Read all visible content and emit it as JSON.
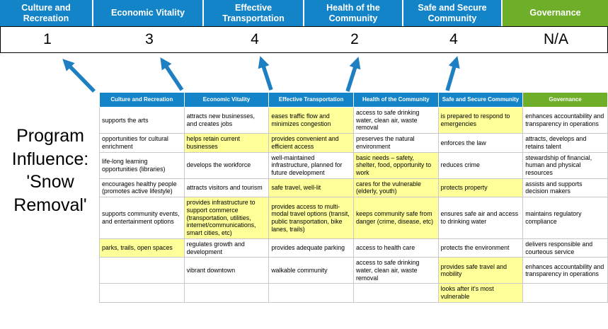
{
  "colors": {
    "header_blue": "#1484C8",
    "header_green": "#6FAE28",
    "highlight_yellow": "#FFFF99",
    "arrow_blue": "#1E7FC2"
  },
  "program": {
    "label": "Program Influence: 'Snow Removal'"
  },
  "pillars": [
    {
      "label": "Culture and Recreation",
      "score": "1",
      "color": "blue"
    },
    {
      "label": "Economic Vitality",
      "score": "3",
      "color": "blue"
    },
    {
      "label": "Effective Transportation",
      "score": "4",
      "color": "blue"
    },
    {
      "label": "Health of the Community",
      "score": "2",
      "color": "blue"
    },
    {
      "label": "Safe and Secure Community",
      "score": "4",
      "color": "blue"
    },
    {
      "label": "Governance",
      "score": "N/A",
      "color": "green"
    }
  ],
  "table": {
    "headers": [
      {
        "label": "Culture and Recreation",
        "color": "blue"
      },
      {
        "label": "Economic Vitality",
        "color": "blue"
      },
      {
        "label": "Effective Transportation",
        "color": "blue"
      },
      {
        "label": "Health of the Community",
        "color": "blue"
      },
      {
        "label": "Safe and Secure Community",
        "color": "blue"
      },
      {
        "label": "Governance",
        "color": "green"
      }
    ],
    "rows": [
      [
        {
          "text": "supports the arts",
          "highlight": false
        },
        {
          "text": "attracts new businesses, and creates jobs",
          "highlight": false
        },
        {
          "text": "eases traffic flow and minimizes congestion",
          "highlight": true
        },
        {
          "text": "access to safe drinking water, clean air, waste removal",
          "highlight": false
        },
        {
          "text": "is prepared to respond to emergencies",
          "highlight": true
        },
        {
          "text": "enhances accountability and transparency in operations",
          "highlight": false
        }
      ],
      [
        {
          "text": "opportunities for cultural enrichment",
          "highlight": false
        },
        {
          "text": "helps retain current businesses",
          "highlight": true
        },
        {
          "text": "provides convenient and efficient access",
          "highlight": true
        },
        {
          "text": "preserves the natural environment",
          "highlight": false
        },
        {
          "text": "enforces the law",
          "highlight": false
        },
        {
          "text": "attracts, develops and retains talent",
          "highlight": false
        }
      ],
      [
        {
          "text": "life-long learning opportunities (libraries)",
          "highlight": false
        },
        {
          "text": "develops the workforce",
          "highlight": false
        },
        {
          "text": "well-maintained infrastructure, planned for future development",
          "highlight": false
        },
        {
          "text": "basic needs – safety, shelter, food, opportunity to work",
          "highlight": true
        },
        {
          "text": "reduces crime",
          "highlight": false
        },
        {
          "text": "stewardship of financial, human and physical resources",
          "highlight": false
        }
      ],
      [
        {
          "text": "encourages healthy people (promotes active lifestyle)",
          "highlight": false
        },
        {
          "text": "attracts visitors and tourism",
          "highlight": false
        },
        {
          "text": "safe travel, well-lit",
          "highlight": true
        },
        {
          "text": "cares for the vulnerable (elderly, youth)",
          "highlight": true
        },
        {
          "text": "protects property",
          "highlight": true
        },
        {
          "text": "assists and supports decision makers",
          "highlight": false
        }
      ],
      [
        {
          "text": "supports community events, and entertainment options",
          "highlight": false
        },
        {
          "text": "provides infrastructure to support commerce (transportation, utilities, internet/communications, smart cities, etc)",
          "highlight": true
        },
        {
          "text": "provides access to multi-modal travel options (transit, public transportation, bike lanes, trails)",
          "highlight": true
        },
        {
          "text": "keeps community safe from danger (crime, disease, etc)",
          "highlight": true
        },
        {
          "text": "ensures safe air and access to drinking water",
          "highlight": false
        },
        {
          "text": "maintains regulatory compliance",
          "highlight": false
        }
      ],
      [
        {
          "text": "parks, trails, open spaces",
          "highlight": true
        },
        {
          "text": "regulates growth and development",
          "highlight": false
        },
        {
          "text": "provides adequate parking",
          "highlight": false
        },
        {
          "text": "access to health care",
          "highlight": false
        },
        {
          "text": "protects the environment",
          "highlight": false
        },
        {
          "text": "delivers responsible and courteous service",
          "highlight": false
        }
      ],
      [
        {
          "text": "",
          "highlight": false
        },
        {
          "text": "vibrant downtown",
          "highlight": false
        },
        {
          "text": "walkable community",
          "highlight": false
        },
        {
          "text": "access to safe drinking water, clean air, waste removal",
          "highlight": false
        },
        {
          "text": "provides safe travel and mobility",
          "highlight": true
        },
        {
          "text": "enhances accountability and transparency in operations",
          "highlight": false
        }
      ],
      [
        {
          "text": "",
          "highlight": false
        },
        {
          "text": "",
          "highlight": false
        },
        {
          "text": "",
          "highlight": false
        },
        {
          "text": "",
          "highlight": false
        },
        {
          "text": "looks after it's most vulnerable",
          "highlight": true
        },
        {
          "text": "",
          "highlight": false
        }
      ]
    ]
  }
}
